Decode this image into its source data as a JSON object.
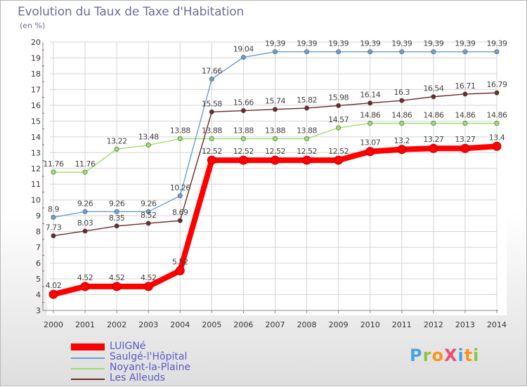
{
  "title": "Evolution du Taux de Taxe d'Habitation",
  "subtitle": "(en %)",
  "logo": {
    "text": "ProXiti",
    "colors": [
      "#4aa3df",
      "#8dc63f",
      "#f7941d",
      "#e94e77",
      "#4aa3df",
      "#f7941d",
      "#8dc63f"
    ]
  },
  "chart_data": {
    "type": "line",
    "x": [
      "2000",
      "2001",
      "2002",
      "2003",
      "2004",
      "2005",
      "2006",
      "2007",
      "2008",
      "2009",
      "2010",
      "2011",
      "2012",
      "2013",
      "2014"
    ],
    "ylim": [
      3,
      20
    ],
    "yticks": [
      "3",
      "4",
      "5",
      "6",
      "7",
      "8",
      "9",
      "10",
      "11",
      "12",
      "13",
      "14",
      "15",
      "16",
      "17",
      "18",
      "19",
      "20"
    ],
    "grid": true,
    "legend_position": "bottom-left",
    "series": [
      {
        "name": "LUIGNé",
        "color": "#ff0000",
        "values": [
          4.02,
          4.52,
          4.52,
          4.52,
          5.52,
          12.52,
          12.52,
          12.52,
          12.52,
          12.52,
          13.07,
          13.2,
          13.27,
          13.27,
          13.4
        ],
        "labels": [
          "4.02",
          "4.52",
          "4.52",
          "4.52",
          "5.52",
          "12.52",
          "12.52",
          "12.52",
          "12.52",
          "12.52",
          "13.07",
          "13.2",
          "13.27",
          "13.27",
          "13.4"
        ]
      },
      {
        "name": "Saulgé-l'Hôpital",
        "color": "#6a9ed2",
        "values": [
          8.9,
          9.26,
          9.26,
          9.26,
          10.26,
          17.66,
          19.04,
          19.39,
          19.39,
          19.39,
          19.39,
          19.39,
          19.39,
          19.39,
          19.39
        ],
        "labels": [
          "8.9",
          "9.26",
          "9.26",
          "9.26",
          "10.26",
          "17.66",
          "19.04",
          "19.39",
          "19.39",
          "19.39",
          "19.39",
          "19.39",
          "19.39",
          "19.39",
          "19.39"
        ]
      },
      {
        "name": "Noyant-la-Plaine",
        "color": "#99e066",
        "values": [
          11.76,
          11.76,
          13.22,
          13.48,
          13.88,
          13.88,
          13.88,
          13.88,
          13.88,
          14.57,
          14.86,
          14.86,
          14.86,
          14.86,
          14.86
        ],
        "labels": [
          "11.76",
          "11.76",
          "13.22",
          "13.48",
          "13.88",
          "13.88",
          "13.88",
          "13.88",
          "13.88",
          "14.57",
          "14.86",
          "14.86",
          "14.86",
          "14.86",
          "14.86"
        ]
      },
      {
        "name": "Les Alleuds",
        "color": "#6b2a2a",
        "values": [
          7.73,
          8.03,
          8.35,
          8.52,
          8.69,
          15.58,
          15.66,
          15.74,
          15.82,
          15.98,
          16.14,
          16.3,
          16.54,
          16.71,
          16.79
        ],
        "labels": [
          "7.73",
          "8.03",
          "8.35",
          "8.52",
          "8.69",
          "15.58",
          "15.66",
          "15.74",
          "15.82",
          "15.98",
          "16.14",
          "16.3",
          "16.54",
          "16.71",
          "16.79"
        ]
      }
    ]
  }
}
